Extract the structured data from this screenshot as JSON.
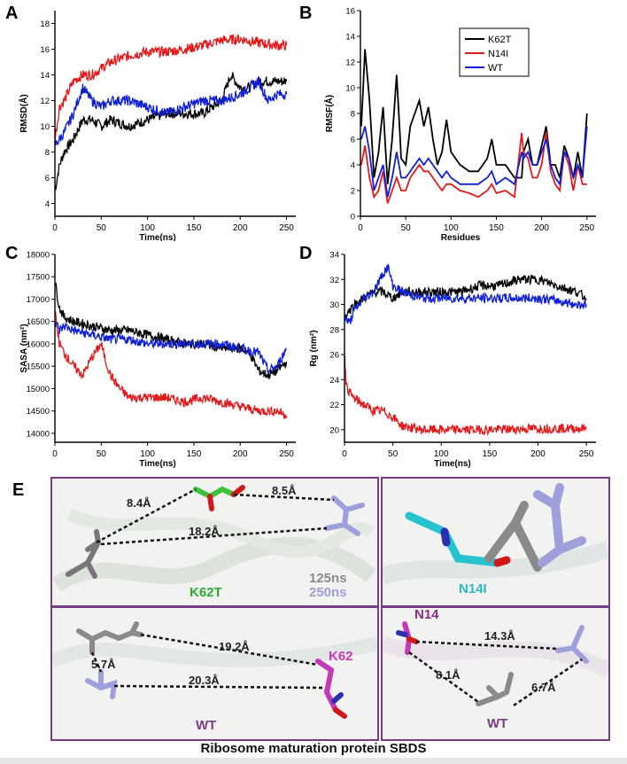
{
  "panels": {
    "a": "A",
    "b": "B",
    "c": "C",
    "d": "D",
    "e": "E"
  },
  "legend": {
    "colors": {
      "K62T": "#000000",
      "N14I": "#e31a1c",
      "WT": "#1020d8"
    }
  },
  "chart_data": [
    {
      "id": "A",
      "type": "line",
      "xlabel": "Time(ns)",
      "ylabel": "RMSD(Å)",
      "xlim": [
        0,
        260
      ],
      "ylim": [
        3,
        19
      ],
      "xticks": [
        0,
        50,
        100,
        150,
        200,
        250
      ],
      "yticks": [
        4,
        6,
        8,
        10,
        12,
        14,
        16,
        18
      ],
      "series": [
        {
          "name": "K62T",
          "x": [
            0,
            5,
            10,
            20,
            30,
            40,
            50,
            60,
            80,
            100,
            120,
            140,
            160,
            180,
            190,
            200,
            210,
            220,
            230,
            240,
            250
          ],
          "y": [
            5,
            7,
            8,
            9,
            10.5,
            10.5,
            10,
            10.5,
            10,
            10.5,
            11,
            11,
            11,
            12,
            14,
            13,
            13,
            13.5,
            13.5,
            13.5,
            13.5
          ]
        },
        {
          "name": "N14I",
          "x": [
            0,
            5,
            10,
            20,
            30,
            40,
            50,
            60,
            80,
            100,
            120,
            140,
            160,
            180,
            200,
            220,
            240,
            250
          ],
          "y": [
            9,
            11.5,
            12,
            13.5,
            14,
            14,
            14.5,
            15,
            15.5,
            15.8,
            15.8,
            16,
            16.3,
            16.7,
            16.8,
            16.5,
            16.3,
            16.3
          ]
        },
        {
          "name": "WT",
          "x": [
            0,
            5,
            10,
            20,
            30,
            40,
            50,
            60,
            80,
            100,
            120,
            140,
            160,
            180,
            200,
            210,
            220,
            230,
            240,
            250
          ],
          "y": [
            8.5,
            9,
            9.5,
            11,
            13,
            12,
            11.5,
            12,
            12,
            11.5,
            11,
            11.5,
            12,
            12,
            12.5,
            13,
            13.5,
            12,
            12.5,
            12.5
          ]
        }
      ]
    },
    {
      "id": "B",
      "type": "line",
      "xlabel": "Residues",
      "ylabel": "RMSF(Å)",
      "xlim": [
        0,
        260
      ],
      "ylim": [
        0,
        16
      ],
      "xticks": [
        0,
        50,
        100,
        150,
        200,
        250
      ],
      "yticks": [
        0,
        2,
        4,
        6,
        8,
        10,
        12,
        14,
        16
      ],
      "legend_position": "top-right",
      "series": [
        {
          "name": "K62T",
          "x": [
            1,
            5,
            10,
            15,
            20,
            25,
            30,
            35,
            40,
            45,
            50,
            55,
            60,
            65,
            70,
            75,
            80,
            85,
            90,
            95,
            100,
            110,
            120,
            130,
            140,
            145,
            150,
            160,
            170,
            178,
            180,
            185,
            190,
            195,
            200,
            205,
            210,
            215,
            220,
            225,
            230,
            235,
            240,
            245,
            250
          ],
          "y": [
            7,
            13,
            9,
            3,
            5,
            8.5,
            2.5,
            6,
            11,
            4.5,
            4,
            7,
            8,
            9,
            7,
            8.5,
            6,
            4,
            5,
            7.5,
            5,
            4,
            3.5,
            3.5,
            4.5,
            6,
            4,
            4,
            3,
            3,
            5,
            6,
            4,
            4,
            5.5,
            7,
            4,
            4,
            3,
            5.5,
            4.5,
            3,
            5,
            3,
            8
          ]
        },
        {
          "name": "N14I",
          "x": [
            1,
            5,
            10,
            15,
            20,
            25,
            30,
            35,
            40,
            45,
            50,
            55,
            60,
            65,
            70,
            75,
            80,
            85,
            90,
            95,
            100,
            110,
            120,
            130,
            140,
            145,
            150,
            160,
            170,
            178,
            180,
            185,
            190,
            195,
            200,
            205,
            210,
            215,
            220,
            225,
            230,
            235,
            240,
            245,
            250
          ],
          "y": [
            4,
            5.5,
            3,
            1.5,
            2,
            3.5,
            1,
            2,
            3,
            2,
            2,
            3,
            3.5,
            4,
            3.5,
            3.5,
            3,
            2.5,
            2,
            2.5,
            2.5,
            2,
            1.8,
            1.5,
            2,
            2.5,
            1.8,
            2,
            1.5,
            6.5,
            5,
            4.5,
            3,
            3,
            4,
            6.5,
            3.5,
            2.5,
            2,
            5,
            4,
            2,
            4,
            2.5,
            2.5
          ]
        },
        {
          "name": "WT",
          "x": [
            1,
            5,
            10,
            15,
            20,
            25,
            30,
            35,
            40,
            45,
            50,
            55,
            60,
            65,
            70,
            75,
            80,
            85,
            90,
            95,
            100,
            110,
            120,
            130,
            140,
            145,
            150,
            160,
            170,
            178,
            180,
            185,
            190,
            195,
            200,
            205,
            210,
            215,
            220,
            225,
            230,
            235,
            240,
            245,
            250
          ],
          "y": [
            6,
            7,
            5,
            2,
            3,
            4,
            1.5,
            3,
            5,
            3,
            3,
            3.5,
            4,
            4.5,
            4,
            4.5,
            4,
            3.5,
            3,
            3.5,
            3,
            2.5,
            2.5,
            2.5,
            3,
            3.5,
            2.5,
            3,
            2.5,
            5,
            4.5,
            5,
            4,
            4,
            5,
            6,
            4,
            3,
            2.5,
            5,
            4.5,
            3,
            4,
            3,
            7
          ]
        }
      ]
    },
    {
      "id": "C",
      "type": "line",
      "xlabel": "Time(ns)",
      "ylabel": "SASA (nm²)",
      "xlim": [
        0,
        260
      ],
      "ylim": [
        13800,
        18000
      ],
      "xticks": [
        0,
        50,
        100,
        150,
        200,
        250
      ],
      "yticks": [
        14000,
        14500,
        15000,
        15500,
        16000,
        16500,
        17000,
        17500,
        18000
      ],
      "series": [
        {
          "name": "K62T",
          "x": [
            0,
            5,
            10,
            20,
            40,
            60,
            80,
            100,
            120,
            140,
            160,
            180,
            200,
            210,
            220,
            230,
            240,
            250
          ],
          "y": [
            17400,
            16800,
            16600,
            16500,
            16400,
            16300,
            16300,
            16200,
            16100,
            16000,
            16000,
            15900,
            15900,
            15800,
            15400,
            15300,
            15400,
            15600
          ]
        },
        {
          "name": "N14I",
          "x": [
            0,
            5,
            10,
            20,
            30,
            40,
            50,
            55,
            60,
            70,
            80,
            100,
            120,
            140,
            160,
            180,
            200,
            220,
            240,
            250
          ],
          "y": [
            16700,
            16000,
            15800,
            15500,
            15300,
            15700,
            16000,
            15600,
            15300,
            15000,
            14800,
            14800,
            14800,
            14700,
            14800,
            14700,
            14600,
            14500,
            14500,
            14400
          ]
        },
        {
          "name": "WT",
          "x": [
            0,
            5,
            10,
            20,
            40,
            60,
            80,
            100,
            120,
            140,
            160,
            180,
            200,
            220,
            230,
            240,
            250
          ],
          "y": [
            16500,
            16300,
            16400,
            16300,
            16200,
            16100,
            16100,
            16000,
            16000,
            16000,
            16000,
            16000,
            15900,
            15800,
            15400,
            15500,
            15900
          ]
        }
      ]
    },
    {
      "id": "D",
      "type": "line",
      "xlabel": "Time(ns)",
      "ylabel": "Rg (nm²)",
      "xlim": [
        0,
        260
      ],
      "ylim": [
        19,
        34
      ],
      "xticks": [
        0,
        50,
        100,
        150,
        200,
        250
      ],
      "yticks": [
        20,
        22,
        24,
        26,
        28,
        30,
        32,
        34
      ],
      "series": [
        {
          "name": "K62T",
          "x": [
            0,
            5,
            10,
            20,
            30,
            40,
            50,
            60,
            80,
            100,
            120,
            140,
            160,
            180,
            200,
            220,
            240,
            250
          ],
          "y": [
            29,
            29.5,
            30,
            30.5,
            31,
            31,
            30.5,
            31,
            31,
            31,
            31,
            31.5,
            31.5,
            32,
            32,
            31.5,
            31,
            30.5
          ]
        },
        {
          "name": "N14I",
          "x": [
            0,
            2,
            5,
            10,
            20,
            30,
            40,
            50,
            60,
            80,
            100,
            150,
            200,
            250
          ],
          "y": [
            26,
            23.5,
            23,
            22.5,
            22,
            21.5,
            21.5,
            21,
            20.3,
            20,
            20,
            20,
            20.1,
            20.1
          ]
        },
        {
          "name": "WT",
          "x": [
            0,
            5,
            10,
            20,
            30,
            40,
            45,
            50,
            60,
            80,
            100,
            120,
            140,
            160,
            180,
            200,
            220,
            240,
            250
          ],
          "y": [
            29,
            28.5,
            29.5,
            30.5,
            31,
            32.5,
            33,
            31.5,
            31,
            30.5,
            30.5,
            30.5,
            30.5,
            30.5,
            30.5,
            30.5,
            30.3,
            30,
            30
          ]
        }
      ]
    }
  ],
  "structures": {
    "k62t": {
      "label": "K62T",
      "legend_125": "125ns",
      "legend_250": "250ns",
      "d1": "8.4Å",
      "d2": "8.5Å",
      "d3": "18.2Å"
    },
    "n14i": {
      "label": "N14I"
    },
    "wt_left": {
      "label": "WT",
      "residue": "K62",
      "d1": "19.2Å",
      "d2": "5.7Å",
      "d3": "20.3Å"
    },
    "wt_right": {
      "label": "WT",
      "residue": "N14",
      "d1": "14.3Å",
      "d2": "8.1Å",
      "d3": "6.7Å"
    }
  },
  "caption": "Ribosome maturation protein SBDS"
}
